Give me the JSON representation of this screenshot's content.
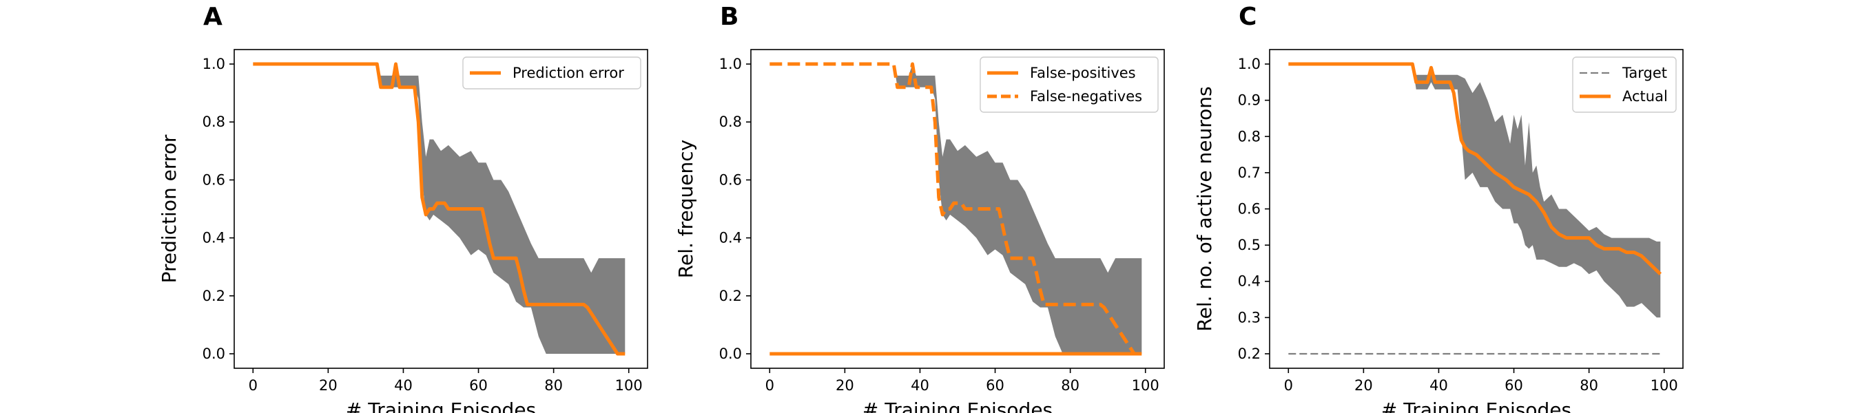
{
  "colors": {
    "line": "#ff7f0e",
    "band": "#808080",
    "target": "#7f7f7f",
    "axes": "#000000"
  },
  "chart_data": [
    {
      "panel": "A",
      "type": "line",
      "xlabel": "# Training Episodes",
      "ylabel": "Prediction error",
      "xlim": [
        -5,
        105
      ],
      "ylim": [
        -0.05,
        1.05
      ],
      "xticks": [
        0,
        20,
        40,
        60,
        80,
        100
      ],
      "yticks": [
        0.0,
        0.2,
        0.4,
        0.6,
        0.8,
        1.0
      ],
      "ytick_labels": [
        "0.0",
        "0.2",
        "0.4",
        "0.6",
        "0.8",
        "1.0"
      ],
      "legend": "top-right",
      "band": {
        "x": [
          0,
          33,
          34,
          35,
          36,
          37,
          38,
          39,
          40,
          41,
          42,
          43,
          44,
          45,
          46,
          47,
          48,
          50,
          52,
          55,
          58,
          60,
          62,
          64,
          66,
          68,
          70,
          72,
          74,
          76,
          78,
          80,
          85,
          88,
          90,
          92,
          94,
          96,
          98,
          99
        ],
        "upper": [
          1.0,
          1.0,
          0.96,
          0.96,
          0.96,
          0.96,
          1.0,
          0.96,
          0.96,
          0.96,
          0.96,
          0.96,
          0.96,
          0.8,
          0.68,
          0.74,
          0.74,
          0.7,
          0.72,
          0.68,
          0.7,
          0.66,
          0.66,
          0.6,
          0.6,
          0.56,
          0.5,
          0.44,
          0.38,
          0.33,
          0.33,
          0.33,
          0.33,
          0.33,
          0.28,
          0.33,
          0.33,
          0.33,
          0.33,
          0.33
        ],
        "lower": [
          1.0,
          1.0,
          0.92,
          0.92,
          0.92,
          0.92,
          0.92,
          0.92,
          0.92,
          0.92,
          0.92,
          0.92,
          0.88,
          0.6,
          0.48,
          0.46,
          0.48,
          0.46,
          0.44,
          0.4,
          0.34,
          0.36,
          0.34,
          0.28,
          0.26,
          0.24,
          0.18,
          0.16,
          0.16,
          0.06,
          0.0,
          0.0,
          0.0,
          0.0,
          0.0,
          0.0,
          0.0,
          0.0,
          0.0,
          0.0
        ]
      },
      "series": [
        {
          "name": "Prediction error",
          "style": "solid",
          "x": [
            0,
            33,
            34,
            35,
            36,
            37,
            38,
            39,
            40,
            41,
            42,
            43,
            44,
            45,
            46,
            47,
            48,
            49,
            50,
            51,
            52,
            53,
            54,
            55,
            56,
            57,
            58,
            59,
            60,
            61,
            62,
            63,
            64,
            65,
            66,
            67,
            68,
            69,
            70,
            71,
            72,
            73,
            74,
            75,
            76,
            77,
            78,
            88,
            89,
            90,
            91,
            92,
            93,
            94,
            95,
            96,
            97,
            98,
            99
          ],
          "y": [
            1.0,
            1.0,
            0.92,
            0.92,
            0.92,
            0.92,
            1.0,
            0.92,
            0.92,
            0.92,
            0.92,
            0.92,
            0.8,
            0.54,
            0.48,
            0.5,
            0.5,
            0.52,
            0.52,
            0.52,
            0.5,
            0.5,
            0.5,
            0.5,
            0.5,
            0.5,
            0.5,
            0.5,
            0.5,
            0.5,
            0.44,
            0.38,
            0.33,
            0.33,
            0.33,
            0.33,
            0.33,
            0.33,
            0.33,
            0.28,
            0.22,
            0.17,
            0.17,
            0.17,
            0.17,
            0.17,
            0.17,
            0.17,
            0.16,
            0.14,
            0.12,
            0.1,
            0.08,
            0.06,
            0.04,
            0.02,
            0.0,
            0.0,
            0.0
          ]
        }
      ]
    },
    {
      "panel": "B",
      "type": "line",
      "xlabel": "# Training Episodes",
      "ylabel": "Rel. frequency",
      "xlim": [
        -5,
        105
      ],
      "ylim": [
        -0.05,
        1.05
      ],
      "xticks": [
        0,
        20,
        40,
        60,
        80,
        100
      ],
      "yticks": [
        0.0,
        0.2,
        0.4,
        0.6,
        0.8,
        1.0
      ],
      "ytick_labels": [
        "0.0",
        "0.2",
        "0.4",
        "0.6",
        "0.8",
        "1.0"
      ],
      "legend": "top-right",
      "band": {
        "x": [
          0,
          33,
          34,
          35,
          36,
          37,
          38,
          39,
          40,
          41,
          42,
          43,
          44,
          45,
          46,
          47,
          48,
          50,
          52,
          55,
          58,
          60,
          62,
          64,
          66,
          68,
          70,
          72,
          74,
          76,
          78,
          80,
          85,
          88,
          90,
          92,
          94,
          96,
          98,
          99
        ],
        "upper": [
          1.0,
          1.0,
          0.96,
          0.96,
          0.96,
          0.96,
          1.0,
          0.96,
          0.96,
          0.96,
          0.96,
          0.96,
          0.96,
          0.8,
          0.68,
          0.74,
          0.74,
          0.7,
          0.72,
          0.68,
          0.7,
          0.66,
          0.66,
          0.6,
          0.6,
          0.56,
          0.5,
          0.44,
          0.38,
          0.33,
          0.33,
          0.33,
          0.33,
          0.33,
          0.28,
          0.33,
          0.33,
          0.33,
          0.33,
          0.33
        ],
        "lower": [
          1.0,
          1.0,
          0.92,
          0.92,
          0.92,
          0.92,
          0.92,
          0.92,
          0.92,
          0.92,
          0.92,
          0.92,
          0.88,
          0.6,
          0.48,
          0.46,
          0.48,
          0.46,
          0.44,
          0.4,
          0.34,
          0.36,
          0.34,
          0.28,
          0.26,
          0.24,
          0.18,
          0.16,
          0.16,
          0.06,
          0.0,
          0.0,
          0.0,
          0.0,
          0.0,
          0.0,
          0.0,
          0.0,
          0.0,
          0.0
        ]
      },
      "series": [
        {
          "name": "False-positives",
          "style": "solid",
          "x": [
            0,
            99
          ],
          "y": [
            0.0,
            0.0
          ]
        },
        {
          "name": "False-negatives",
          "style": "dashed",
          "x": [
            0,
            33,
            34,
            35,
            36,
            37,
            38,
            39,
            40,
            41,
            42,
            43,
            44,
            45,
            46,
            47,
            48,
            49,
            50,
            51,
            52,
            53,
            54,
            55,
            56,
            57,
            58,
            59,
            60,
            61,
            62,
            63,
            64,
            65,
            66,
            67,
            68,
            69,
            70,
            71,
            72,
            73,
            74,
            75,
            76,
            77,
            78,
            88,
            89,
            90,
            91,
            92,
            93,
            94,
            95,
            96,
            97,
            98,
            99
          ],
          "y": [
            1.0,
            1.0,
            0.92,
            0.92,
            0.92,
            0.92,
            1.0,
            0.92,
            0.92,
            0.92,
            0.92,
            0.92,
            0.8,
            0.54,
            0.48,
            0.5,
            0.5,
            0.52,
            0.52,
            0.52,
            0.5,
            0.5,
            0.5,
            0.5,
            0.5,
            0.5,
            0.5,
            0.5,
            0.5,
            0.5,
            0.44,
            0.38,
            0.33,
            0.33,
            0.33,
            0.33,
            0.33,
            0.33,
            0.33,
            0.28,
            0.22,
            0.17,
            0.17,
            0.17,
            0.17,
            0.17,
            0.17,
            0.17,
            0.16,
            0.14,
            0.12,
            0.1,
            0.08,
            0.06,
            0.04,
            0.02,
            0.0,
            0.0,
            0.0
          ]
        }
      ]
    },
    {
      "panel": "C",
      "type": "line",
      "xlabel": "# Training Episodes",
      "ylabel": "Rel. no. of active neurons",
      "xlim": [
        -5,
        105
      ],
      "ylim": [
        0.16,
        1.04
      ],
      "xticks": [
        0,
        20,
        40,
        60,
        80,
        100
      ],
      "yticks": [
        0.2,
        0.3,
        0.4,
        0.5,
        0.6,
        0.7,
        0.8,
        0.9,
        1.0
      ],
      "ytick_labels": [
        "0.2",
        "0.3",
        "0.4",
        "0.5",
        "0.6",
        "0.7",
        "0.8",
        "0.9",
        "1.0"
      ],
      "legend": "top-right",
      "band": {
        "x": [
          0,
          33,
          34,
          36,
          37,
          38,
          39,
          41,
          43,
          45,
          47,
          49,
          51,
          53,
          55,
          57,
          59,
          60,
          61,
          62,
          63,
          64,
          65,
          66,
          67,
          68,
          70,
          72,
          74,
          76,
          78,
          80,
          82,
          84,
          86,
          88,
          90,
          92,
          94,
          96,
          98,
          99
        ],
        "upper": [
          1.0,
          1.0,
          0.97,
          0.97,
          0.97,
          0.99,
          0.97,
          0.97,
          0.97,
          0.97,
          0.96,
          0.92,
          0.95,
          0.9,
          0.84,
          0.86,
          0.78,
          0.86,
          0.82,
          0.86,
          0.72,
          0.84,
          0.7,
          0.72,
          0.66,
          0.62,
          0.64,
          0.6,
          0.6,
          0.58,
          0.56,
          0.54,
          0.55,
          0.53,
          0.52,
          0.52,
          0.52,
          0.52,
          0.52,
          0.52,
          0.51,
          0.51
        ],
        "lower": [
          1.0,
          1.0,
          0.93,
          0.93,
          0.93,
          0.95,
          0.93,
          0.93,
          0.93,
          0.93,
          0.68,
          0.7,
          0.66,
          0.66,
          0.62,
          0.6,
          0.6,
          0.56,
          0.56,
          0.54,
          0.5,
          0.49,
          0.5,
          0.46,
          0.46,
          0.46,
          0.45,
          0.44,
          0.44,
          0.45,
          0.44,
          0.42,
          0.43,
          0.4,
          0.38,
          0.36,
          0.33,
          0.33,
          0.34,
          0.32,
          0.3,
          0.3
        ]
      },
      "series": [
        {
          "name": "Target",
          "style": "dashed-thin",
          "x": [
            0,
            99
          ],
          "y": [
            0.2,
            0.2
          ]
        },
        {
          "name": "Actual",
          "style": "solid",
          "x": [
            0,
            33,
            34,
            35,
            36,
            37,
            38,
            39,
            40,
            41,
            42,
            43,
            44,
            45,
            46,
            47,
            48,
            50,
            52,
            55,
            58,
            60,
            62,
            64,
            66,
            68,
            70,
            72,
            74,
            76,
            78,
            80,
            82,
            84,
            86,
            88,
            90,
            92,
            94,
            96,
            98,
            99
          ],
          "y": [
            1.0,
            1.0,
            0.95,
            0.95,
            0.95,
            0.95,
            0.99,
            0.95,
            0.95,
            0.95,
            0.95,
            0.95,
            0.92,
            0.85,
            0.79,
            0.77,
            0.76,
            0.75,
            0.73,
            0.7,
            0.68,
            0.66,
            0.65,
            0.64,
            0.62,
            0.59,
            0.55,
            0.53,
            0.52,
            0.52,
            0.52,
            0.52,
            0.5,
            0.49,
            0.49,
            0.49,
            0.48,
            0.48,
            0.47,
            0.45,
            0.43,
            0.42
          ]
        }
      ]
    }
  ]
}
